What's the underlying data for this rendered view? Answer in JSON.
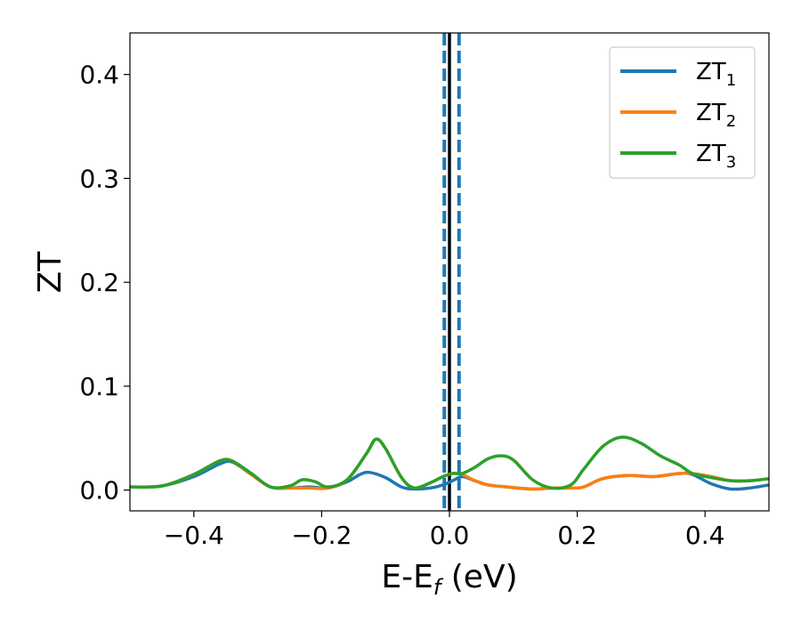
{
  "chart_data": {
    "type": "line",
    "xlabel": "E-E_f (eV)",
    "xlabel_parts": {
      "main": "E-E",
      "subscript": "f",
      "suffix": " (eV)"
    },
    "ylabel": "ZT",
    "xlim": [
      -0.5,
      0.5
    ],
    "ylim": [
      -0.02,
      0.44
    ],
    "xticks": [
      -0.4,
      -0.2,
      0.0,
      0.2,
      0.4
    ],
    "xtick_labels": [
      "−0.4",
      "−0.2",
      "0.0",
      "0.2",
      "0.4"
    ],
    "yticks": [
      0.0,
      0.1,
      0.2,
      0.3,
      0.4
    ],
    "ytick_labels": [
      "0.0",
      "0.1",
      "0.2",
      "0.3",
      "0.4"
    ],
    "grid": false,
    "legend_position": "top-right",
    "vlines": [
      {
        "x": 0.0,
        "style": "solid",
        "color": "#000000"
      },
      {
        "x": -0.008,
        "style": "dashed",
        "color": "#1f77b4"
      },
      {
        "x": 0.015,
        "style": "dashed",
        "color": "#1f77b4"
      }
    ],
    "series": [
      {
        "name": "ZT1",
        "label_main": "ZT",
        "label_sub": "1",
        "color": "#1f77b4",
        "points": [
          [
            -0.5,
            0.003
          ],
          [
            -0.45,
            0.004
          ],
          [
            -0.4,
            0.013
          ],
          [
            -0.36,
            0.025
          ],
          [
            -0.34,
            0.027
          ],
          [
            -0.31,
            0.015
          ],
          [
            -0.28,
            0.003
          ],
          [
            -0.25,
            0.002
          ],
          [
            -0.22,
            0.003
          ],
          [
            -0.19,
            0.002
          ],
          [
            -0.16,
            0.008
          ],
          [
            -0.14,
            0.015
          ],
          [
            -0.125,
            0.017
          ],
          [
            -0.1,
            0.012
          ],
          [
            -0.075,
            0.003
          ],
          [
            -0.055,
            0.001
          ],
          [
            -0.03,
            0.002
          ],
          [
            -0.01,
            0.005
          ],
          [
            0.005,
            0.009
          ],
          [
            0.02,
            0.013
          ],
          [
            0.04,
            0.009
          ],
          [
            0.06,
            0.005
          ],
          [
            0.09,
            0.003
          ],
          [
            0.13,
            0.001
          ],
          [
            0.16,
            0.002
          ],
          [
            0.19,
            0.002
          ],
          [
            0.21,
            0.003
          ],
          [
            0.24,
            0.011
          ],
          [
            0.28,
            0.014
          ],
          [
            0.32,
            0.013
          ],
          [
            0.36,
            0.016
          ],
          [
            0.38,
            0.015
          ],
          [
            0.41,
            0.006
          ],
          [
            0.44,
            0.001
          ],
          [
            0.47,
            0.002
          ],
          [
            0.5,
            0.005
          ]
        ]
      },
      {
        "name": "ZT2",
        "label_main": "ZT",
        "label_sub": "2",
        "color": "#ff7f0e",
        "points": [
          [
            -0.5,
            0.003
          ],
          [
            -0.45,
            0.004
          ],
          [
            -0.4,
            0.015
          ],
          [
            -0.36,
            0.028
          ],
          [
            -0.34,
            0.028
          ],
          [
            -0.31,
            0.015
          ],
          [
            -0.28,
            0.003
          ],
          [
            -0.25,
            0.002
          ],
          [
            -0.22,
            0.002
          ],
          [
            -0.19,
            0.002
          ],
          [
            -0.16,
            0.01
          ],
          [
            -0.13,
            0.035
          ],
          [
            -0.115,
            0.049
          ],
          [
            -0.1,
            0.04
          ],
          [
            -0.075,
            0.012
          ],
          [
            -0.055,
            0.002
          ],
          [
            -0.03,
            0.007
          ],
          [
            -0.01,
            0.013
          ],
          [
            0.005,
            0.016
          ],
          [
            0.02,
            0.015
          ],
          [
            0.04,
            0.009
          ],
          [
            0.06,
            0.005
          ],
          [
            0.09,
            0.003
          ],
          [
            0.13,
            0.001
          ],
          [
            0.16,
            0.002
          ],
          [
            0.19,
            0.002
          ],
          [
            0.21,
            0.003
          ],
          [
            0.24,
            0.011
          ],
          [
            0.28,
            0.014
          ],
          [
            0.32,
            0.013
          ],
          [
            0.36,
            0.016
          ],
          [
            0.38,
            0.016
          ],
          [
            0.41,
            0.013
          ],
          [
            0.44,
            0.009
          ],
          [
            0.47,
            0.009
          ],
          [
            0.5,
            0.011
          ]
        ]
      },
      {
        "name": "ZT3",
        "label_main": "ZT",
        "label_sub": "3",
        "color": "#2ca02c",
        "points": [
          [
            -0.5,
            0.003
          ],
          [
            -0.45,
            0.004
          ],
          [
            -0.4,
            0.015
          ],
          [
            -0.36,
            0.028
          ],
          [
            -0.34,
            0.028
          ],
          [
            -0.31,
            0.016
          ],
          [
            -0.28,
            0.003
          ],
          [
            -0.25,
            0.004
          ],
          [
            -0.23,
            0.01
          ],
          [
            -0.21,
            0.008
          ],
          [
            -0.19,
            0.003
          ],
          [
            -0.16,
            0.01
          ],
          [
            -0.13,
            0.035
          ],
          [
            -0.115,
            0.049
          ],
          [
            -0.1,
            0.04
          ],
          [
            -0.075,
            0.012
          ],
          [
            -0.055,
            0.002
          ],
          [
            -0.03,
            0.007
          ],
          [
            -0.01,
            0.013
          ],
          [
            0.005,
            0.016
          ],
          [
            0.02,
            0.016
          ],
          [
            0.04,
            0.022
          ],
          [
            0.06,
            0.03
          ],
          [
            0.08,
            0.033
          ],
          [
            0.1,
            0.029
          ],
          [
            0.13,
            0.01
          ],
          [
            0.16,
            0.002
          ],
          [
            0.19,
            0.005
          ],
          [
            0.21,
            0.02
          ],
          [
            0.24,
            0.042
          ],
          [
            0.27,
            0.051
          ],
          [
            0.3,
            0.045
          ],
          [
            0.33,
            0.033
          ],
          [
            0.36,
            0.024
          ],
          [
            0.38,
            0.016
          ],
          [
            0.41,
            0.012
          ],
          [
            0.44,
            0.009
          ],
          [
            0.47,
            0.009
          ],
          [
            0.5,
            0.011
          ]
        ]
      }
    ]
  }
}
